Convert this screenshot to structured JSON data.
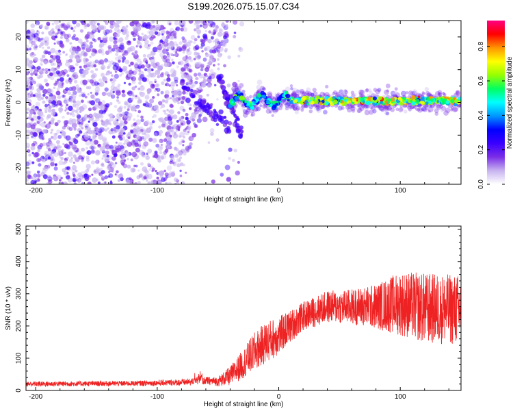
{
  "title": "S199.2026.075.15.07.C34",
  "chart_data": [
    {
      "type": "heatmap",
      "name": "spectrogram",
      "xlabel": "Height of straight line (km)",
      "ylabel": "Frequency (Hz)",
      "xlim": [
        -208,
        150
      ],
      "ylim": [
        -25,
        25
      ],
      "xticks": [
        -200,
        -100,
        0,
        100
      ],
      "yticks": [
        -20,
        -10,
        0,
        10,
        20
      ],
      "ridge": {
        "description": "dense signal band near 0 Hz for x > -40 km",
        "x_start": -40,
        "x_end": 150,
        "freq_center": 0.5
      },
      "chirps": [
        {
          "x": [
            -80,
            -40
          ],
          "freq": [
            5,
            -8
          ]
        },
        {
          "x": [
            -50,
            -30
          ],
          "freq": [
            8,
            -10
          ]
        }
      ],
      "colorbar": {
        "label": "Normalized spectral amplitude",
        "range": [
          0,
          0.95
        ],
        "ticks": [
          "0.0",
          "0.2",
          "0.4",
          "0.6",
          "0.8"
        ],
        "colormap": [
          "#ffffff",
          "#c8b4f0",
          "#7a2ee6",
          "#3a00ff",
          "#0000ff",
          "#0096ff",
          "#00ffff",
          "#00ff60",
          "#96ff00",
          "#ffff00",
          "#ff9600",
          "#ff0000",
          "#ff0080"
        ]
      }
    },
    {
      "type": "line",
      "name": "snr",
      "xlabel": "Height of straight line (km)",
      "ylabel": "SNR (10 * v/v)",
      "xlim": [
        -208,
        150
      ],
      "ylim": [
        0,
        510
      ],
      "xticks": [
        -200,
        -100,
        0,
        100
      ],
      "yticks": [
        0,
        100,
        200,
        300,
        400,
        500
      ],
      "color": "#ee2222",
      "trend": {
        "x": [
          -208,
          -120,
          -80,
          -60,
          -50,
          -40,
          -30,
          -20,
          -10,
          0,
          10,
          20,
          40,
          60,
          80,
          100,
          120,
          150
        ],
        "y": [
          20,
          22,
          25,
          30,
          28,
          45,
          80,
          120,
          150,
          170,
          200,
          230,
          260,
          260,
          260,
          270,
          255,
          250
        ],
        "spread": [
          8,
          8,
          10,
          12,
          15,
          30,
          45,
          60,
          65,
          60,
          50,
          45,
          50,
          55,
          70,
          100,
          110,
          110
        ]
      }
    }
  ]
}
